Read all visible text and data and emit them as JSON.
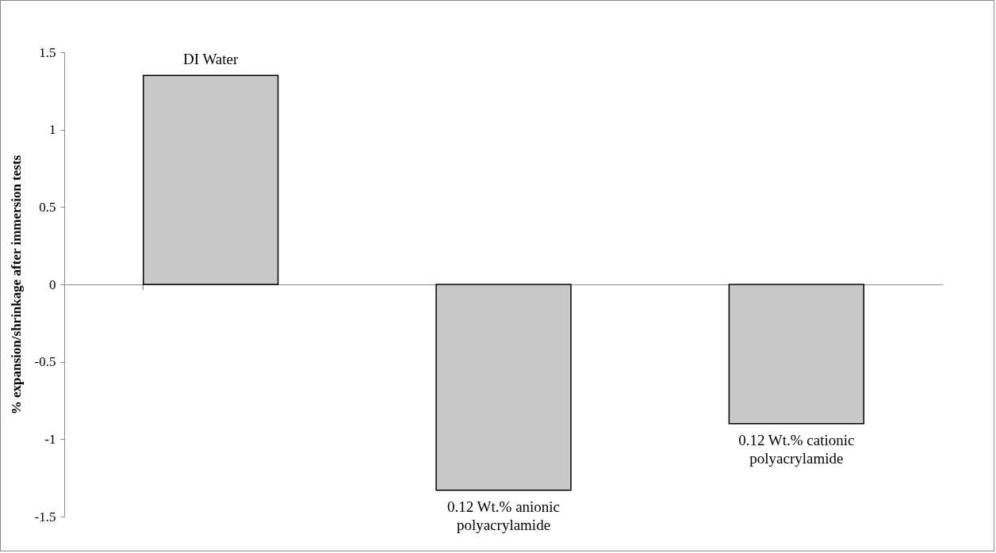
{
  "chart_data": {
    "type": "bar",
    "ylabel": "% expansion/shrinkage after immersion tests",
    "categories": [
      "DI Water",
      "0.12 Wt.% anionic polyacrylamide",
      "0.12 Wt.% cationic polyacrylamide"
    ],
    "values": [
      1.35,
      -1.33,
      -0.9
    ],
    "color": "#c8c8c8",
    "ylim": [
      -1.5,
      1.5
    ],
    "yticks": [
      -1.5,
      -1,
      -0.5,
      0,
      0.5,
      1,
      1.5
    ]
  }
}
